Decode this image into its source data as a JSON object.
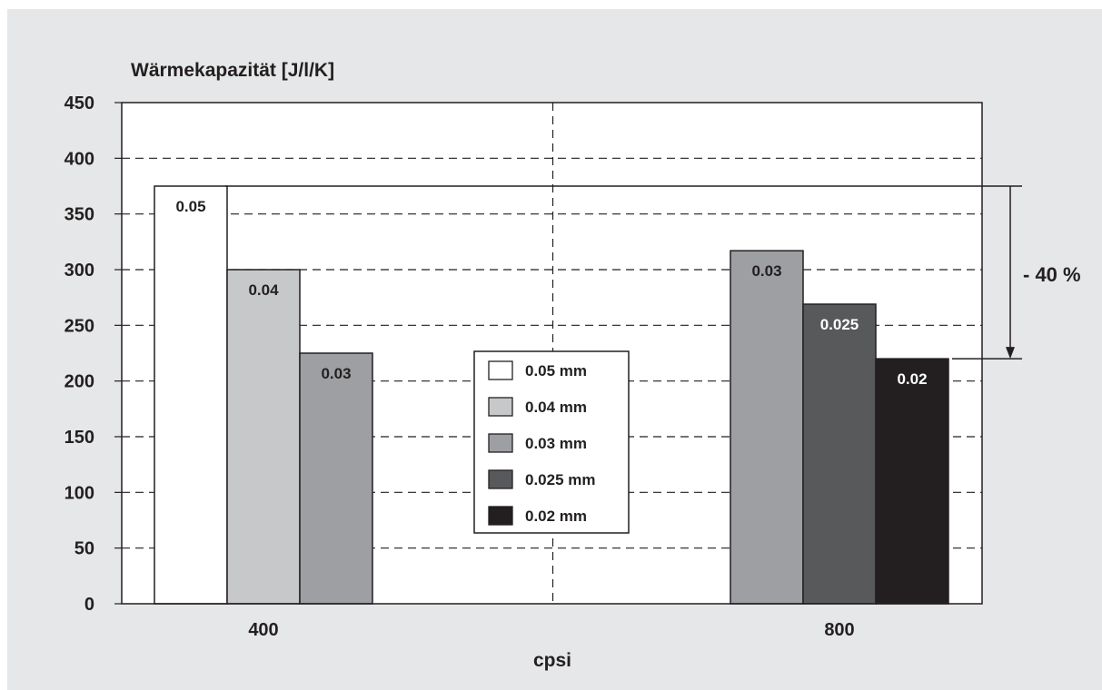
{
  "chart_data": {
    "type": "bar",
    "ylabel": "Wärmekapazität [J/l/K]",
    "xlabel": "cpsi",
    "ylim": [
      0,
      450
    ],
    "yticks": [
      0,
      50,
      100,
      150,
      200,
      250,
      300,
      350,
      400,
      450
    ],
    "grid": "dashed-horizontal",
    "groups": [
      {
        "category": "400",
        "bars": [
          {
            "series": "0.05 mm",
            "value": 375,
            "label": "0.05"
          },
          {
            "series": "0.04 mm",
            "value": 300,
            "label": "0.04"
          },
          {
            "series": "0.03 mm",
            "value": 225,
            "label": "0.03"
          }
        ]
      },
      {
        "category": "800",
        "bars": [
          {
            "series": "0.03 mm",
            "value": 317,
            "label": "0.03"
          },
          {
            "series": "0.025 mm",
            "value": 269,
            "label": "0.025"
          },
          {
            "series": "0.02 mm",
            "value": 220,
            "label": "0.02"
          }
        ]
      }
    ],
    "legend": {
      "placement": "center",
      "entries": [
        {
          "label": "0.05 mm",
          "color": "#ffffff"
        },
        {
          "label": "0.04 mm",
          "color": "#c7c8ca"
        },
        {
          "label": "0.03 mm",
          "color": "#9d9fa2"
        },
        {
          "label": "0.025 mm",
          "color": "#58595b"
        },
        {
          "label": "0.02 mm",
          "color": "#231f20"
        }
      ]
    },
    "annotation": {
      "text": "- 40 %",
      "from_value": 375,
      "to_value": 220
    }
  }
}
